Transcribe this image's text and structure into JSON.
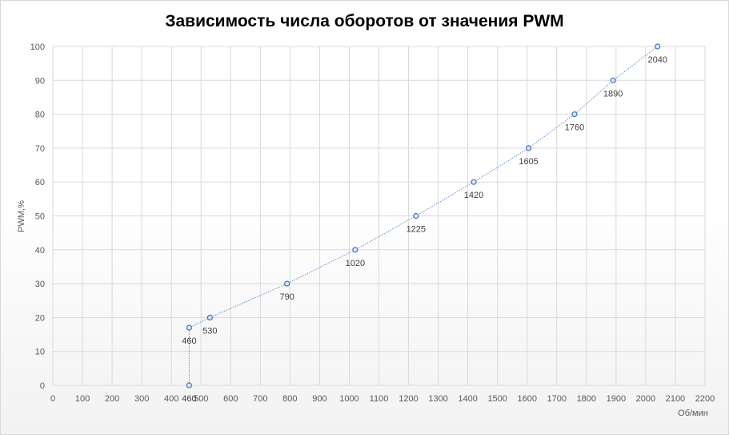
{
  "chart_data": {
    "type": "scatter",
    "title": "Зависимость числа оборотов от значения PWM",
    "xlabel": "Об/мин",
    "ylabel": "PWM,%",
    "xlim": [
      0,
      2200
    ],
    "ylim": [
      0,
      100
    ],
    "x_ticks": [
      0,
      100,
      200,
      300,
      400,
      500,
      600,
      700,
      800,
      900,
      1000,
      1100,
      1200,
      1300,
      1400,
      1500,
      1600,
      1700,
      1800,
      1900,
      2000,
      2100,
      2200
    ],
    "y_ticks": [
      0,
      10,
      20,
      30,
      40,
      50,
      60,
      70,
      80,
      90,
      100
    ],
    "grid": true,
    "legend": "none",
    "line_style": "dotted",
    "series_color": "#4472c4",
    "points": [
      {
        "x": 460,
        "y": 0,
        "label": "460"
      },
      {
        "x": 460,
        "y": 17,
        "label": "460"
      },
      {
        "x": 530,
        "y": 20,
        "label": "530"
      },
      {
        "x": 790,
        "y": 30,
        "label": "790"
      },
      {
        "x": 1020,
        "y": 40,
        "label": "1020"
      },
      {
        "x": 1225,
        "y": 50,
        "label": "1225"
      },
      {
        "x": 1420,
        "y": 60,
        "label": "1420"
      },
      {
        "x": 1605,
        "y": 70,
        "label": "1605"
      },
      {
        "x": 1760,
        "y": 80,
        "label": "1760"
      },
      {
        "x": 1890,
        "y": 90,
        "label": "1890"
      },
      {
        "x": 2040,
        "y": 100,
        "label": "2040"
      }
    ]
  }
}
